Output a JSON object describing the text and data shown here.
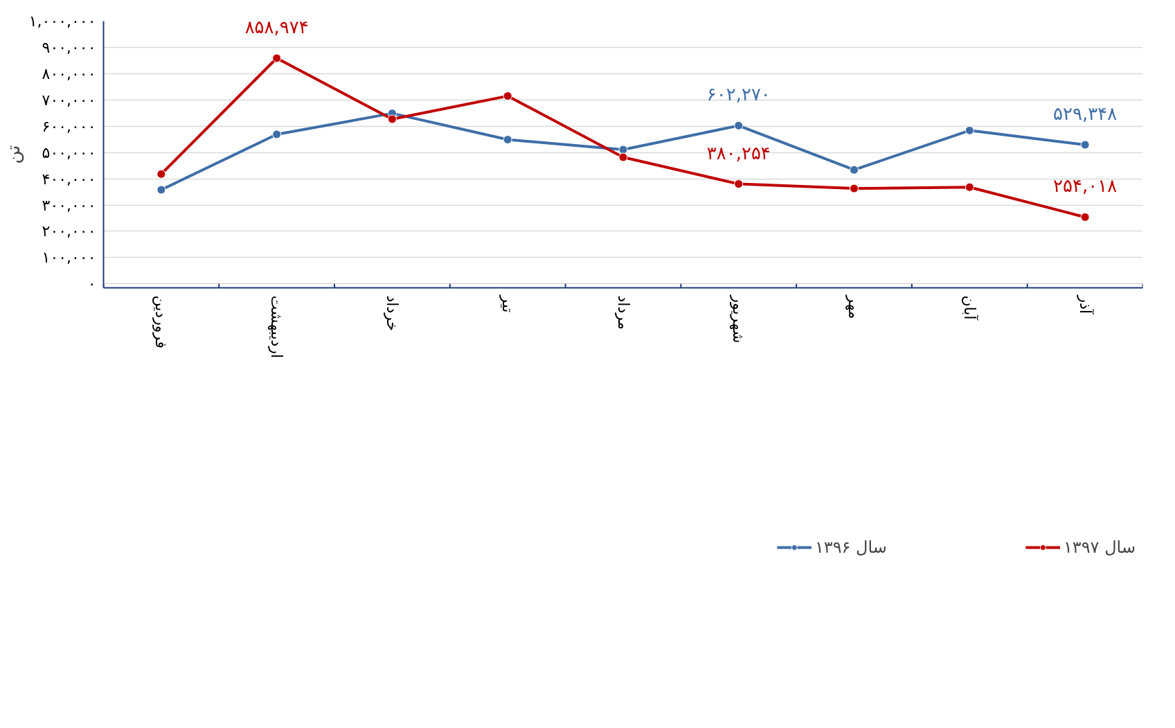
{
  "chart_data": {
    "type": "line",
    "ylabel": "تن",
    "categories": [
      "فروردین",
      "اردیبهشت",
      "خرداد",
      "تیر",
      "مرداد",
      "شهریور",
      "مهر",
      "آبان",
      "آذر"
    ],
    "series": [
      {
        "name": "سال ۱۳۹۶",
        "color": "#3f6ea8",
        "values": [
          358000,
          569000,
          649000,
          549000,
          511000,
          602270,
          434000,
          584000,
          529348
        ],
        "value_labels": [
          null,
          null,
          null,
          null,
          null,
          "۶۰۲,۲۷۰",
          null,
          null,
          "۵۲۹,۳۴۸"
        ]
      },
      {
        "name": "سال ۱۳۹۷",
        "color": "#c00000",
        "values": [
          418000,
          858974,
          627000,
          715000,
          482000,
          380254,
          363000,
          368000,
          254018
        ],
        "value_labels": [
          null,
          "۸۵۸,۹۷۴",
          null,
          null,
          null,
          "۳۸۰,۲۵۴",
          null,
          null,
          "۲۵۴,۰۱۸"
        ]
      }
    ],
    "ylim": [
      0,
      1000000
    ],
    "yticks": [
      {
        "value": 0,
        "label": "۰"
      },
      {
        "value": 100000,
        "label": "۱۰۰,۰۰۰"
      },
      {
        "value": 200000,
        "label": "۲۰۰,۰۰۰"
      },
      {
        "value": 300000,
        "label": "۳۰۰,۰۰۰"
      },
      {
        "value": 400000,
        "label": "۴۰۰,۰۰۰"
      },
      {
        "value": 500000,
        "label": "۵۰۰,۰۰۰"
      },
      {
        "value": 600000,
        "label": "۶۰۰,۰۰۰"
      },
      {
        "value": 700000,
        "label": "۷۰۰,۰۰۰"
      },
      {
        "value": 800000,
        "label": "۸۰۰,۰۰۰"
      },
      {
        "value": 900000,
        "label": "۹۰۰,۰۰۰"
      },
      {
        "value": 1000000,
        "label": "۱,۰۰۰,۰۰۰"
      }
    ],
    "grid": "y",
    "legend": "bottom",
    "marker": "circle",
    "line_style": "solid"
  }
}
